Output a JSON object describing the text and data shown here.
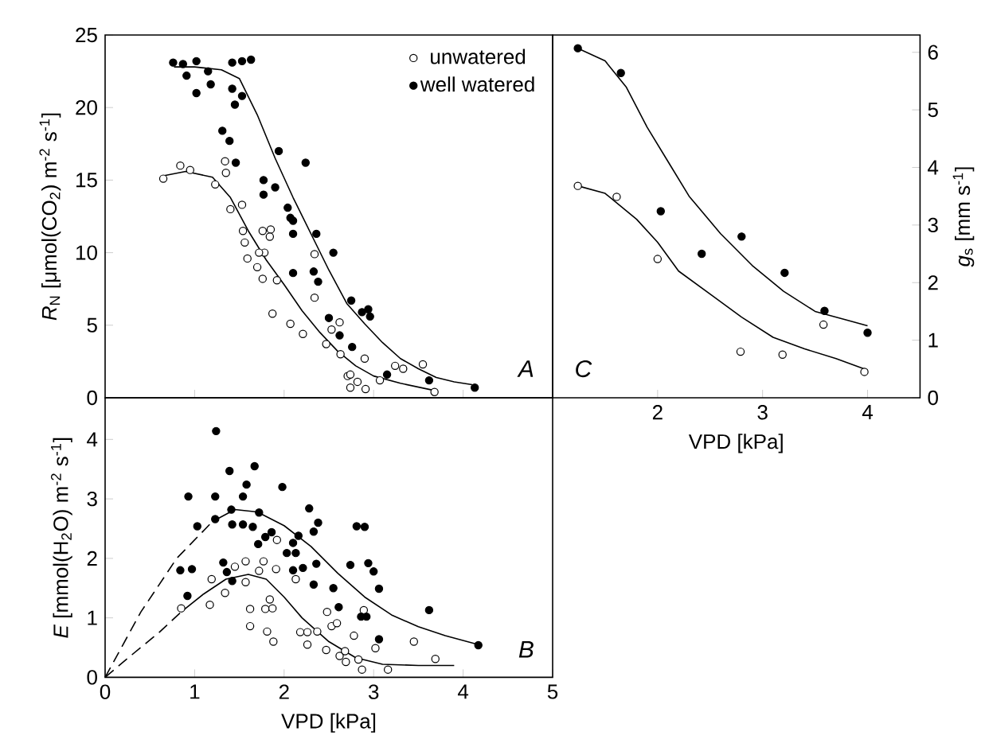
{
  "chart_data": [
    {
      "type": "scatter",
      "xlim": [
        0,
        5
      ],
      "xticks": [
        {
          "value": 1,
          "label": null
        },
        {
          "value": 2,
          "label": null
        },
        {
          "value": 3,
          "label": null
        },
        {
          "value": 4,
          "label": null
        }
      ],
      "ylim": [
        0,
        25
      ],
      "yticks": [
        0,
        5,
        10,
        15,
        20,
        25
      ],
      "tick_labels": "y",
      "ylabel": "*R*$_{N}$ [μmol(CO$_{2}$) m$^{-2}$ s$^{-1}$]",
      "legend": "top right",
      "marker": "circle",
      "annotations": [
        "A"
      ],
      "series": [
        {
          "name": "unwatered",
          "color": "#ffffff",
          "x": [
            0.65,
            0.84,
            0.95,
            1.23,
            1.34,
            1.35,
            1.53,
            1.4,
            1.54,
            1.56,
            1.59,
            1.76,
            1.85,
            1.84,
            1.78,
            1.7,
            1.72,
            1.76,
            1.92,
            1.87,
            2.07,
            2.21,
            2.34,
            2.34,
            2.47,
            2.53,
            2.62,
            2.63,
            2.71,
            2.74,
            2.74,
            2.82,
            2.91,
            2.9,
            3.07,
            3.24,
            3.33,
            3.55,
            3.68
          ],
          "values": [
            15.1,
            16.0,
            15.7,
            14.7,
            16.3,
            15.5,
            13.3,
            13.0,
            11.5,
            10.7,
            9.6,
            11.5,
            11.6,
            11.1,
            10.0,
            9.0,
            10.0,
            8.2,
            8.1,
            5.8,
            5.1,
            4.4,
            9.9,
            6.9,
            3.7,
            4.7,
            5.2,
            3.0,
            1.5,
            1.6,
            0.7,
            1.1,
            0.6,
            2.7,
            1.2,
            2.2,
            2.0,
            2.3,
            0.4
          ]
        },
        {
          "name": "well watered",
          "color": "#000000",
          "x": [
            0.76,
            0.87,
            1.02,
            0.91,
            1.02,
            1.15,
            1.18,
            1.42,
            1.53,
            1.63,
            1.42,
            1.53,
            1.45,
            1.31,
            1.39,
            1.46,
            1.77,
            1.77,
            1.9,
            1.94,
            2.24,
            2.04,
            2.07,
            2.1,
            2.1,
            2.36,
            2.1,
            2.33,
            2.38,
            2.55,
            2.5,
            2.62,
            2.75,
            2.76,
            2.87,
            2.94,
            2.96,
            3.15,
            3.62,
            4.13
          ],
          "values": [
            23.1,
            23.0,
            23.2,
            22.2,
            21.0,
            22.5,
            21.6,
            23.1,
            23.2,
            23.3,
            21.3,
            20.8,
            20.2,
            18.4,
            17.7,
            16.2,
            15.0,
            14.0,
            14.5,
            17.0,
            16.2,
            13.1,
            12.4,
            12.2,
            11.3,
            11.3,
            8.6,
            8.7,
            8.0,
            10.0,
            5.5,
            4.3,
            6.7,
            3.5,
            5.9,
            6.1,
            5.6,
            1.6,
            1.2,
            0.7
          ]
        },
        {
          "type": "line",
          "color": "#000000",
          "marker": "none",
          "line_style": "solid",
          "x": [
            0.65,
            0.9,
            1.2,
            1.4,
            1.6,
            1.8,
            2.0,
            2.2,
            2.4,
            2.6,
            2.8,
            3.0,
            3.3,
            3.68
          ],
          "values": [
            15.3,
            15.6,
            15.2,
            13.8,
            11.5,
            9.5,
            7.8,
            6.0,
            4.5,
            3.2,
            2.2,
            1.5,
            1.0,
            0.5
          ]
        },
        {
          "type": "line",
          "color": "#000000",
          "marker": "none",
          "line_style": "solid",
          "x": [
            0.77,
            1.0,
            1.3,
            1.5,
            1.7,
            1.9,
            2.1,
            2.3,
            2.5,
            2.7,
            2.9,
            3.1,
            3.3,
            3.5,
            3.7,
            3.9,
            4.1
          ],
          "values": [
            22.8,
            22.8,
            22.6,
            22.0,
            19.5,
            16.5,
            13.8,
            11.3,
            8.8,
            6.5,
            5.1,
            3.8,
            2.7,
            2.0,
            1.4,
            1.1,
            0.9
          ]
        }
      ]
    },
    {
      "type": "scatter",
      "xlim": [
        0,
        5
      ],
      "xticks": [
        0,
        1,
        2,
        3,
        4,
        5
      ],
      "ylim": [
        0,
        4.7
      ],
      "yticks": [
        0,
        1,
        2,
        3,
        4
      ],
      "xlabel": "VPD [kPa]",
      "ylabel": "*E* [mmol(H$_{2}$O) m$^{-2}$ s$^{-1}$]",
      "marker": "circle",
      "annotations": [
        "B"
      ],
      "series": [
        {
          "color": "#ffffff",
          "x": [
            0.85,
            1.17,
            1.19,
            1.34,
            1.45,
            1.57,
            1.57,
            1.62,
            1.62,
            1.72,
            1.77,
            1.79,
            1.84,
            1.87,
            1.81,
            1.88,
            1.91,
            1.92,
            2.13,
            2.18,
            2.26,
            2.26,
            2.37,
            2.47,
            2.48,
            2.53,
            2.59,
            2.62,
            2.68,
            2.69,
            2.78,
            2.83,
            2.87,
            2.89,
            3.02,
            3.16,
            3.45,
            3.69
          ],
          "values": [
            1.16,
            1.22,
            1.65,
            1.42,
            1.86,
            1.95,
            1.6,
            1.15,
            0.86,
            1.79,
            1.95,
            1.15,
            1.31,
            1.16,
            0.77,
            0.6,
            1.82,
            2.31,
            1.65,
            0.76,
            0.76,
            0.55,
            0.77,
            0.46,
            1.1,
            0.86,
            0.91,
            0.36,
            0.44,
            0.26,
            0.7,
            0.3,
            0.13,
            1.13,
            0.49,
            0.13,
            0.6,
            0.31
          ]
        },
        {
          "color": "#000000",
          "x": [
            1.24,
            0.93,
            1.23,
            1.39,
            1.67,
            1.58,
            1.54,
            1.98,
            1.03,
            1.23,
            1.41,
            1.42,
            1.54,
            1.65,
            1.72,
            1.71,
            1.79,
            1.86,
            2.03,
            2.13,
            2.1,
            2.16,
            2.1,
            2.21,
            2.28,
            2.38,
            2.33,
            2.36,
            2.33,
            2.55,
            2.61,
            2.74,
            2.86,
            2.92,
            2.81,
            2.9,
            2.94,
            3.0,
            3.06,
            3.06,
            3.62,
            4.17,
            0.84,
            0.97,
            0.92,
            1.32,
            1.36,
            1.42
          ],
          "values": [
            4.14,
            3.04,
            3.04,
            3.47,
            3.55,
            3.24,
            3.04,
            3.2,
            2.54,
            2.66,
            2.82,
            2.57,
            2.57,
            2.53,
            2.77,
            2.24,
            2.36,
            2.44,
            2.09,
            2.09,
            2.26,
            2.38,
            1.8,
            1.84,
            2.84,
            2.6,
            2.45,
            1.91,
            1.56,
            1.5,
            1.18,
            1.89,
            1.02,
            1.02,
            2.54,
            2.53,
            1.92,
            1.78,
            1.49,
            0.64,
            1.13,
            0.54,
            1.8,
            1.82,
            1.37,
            1.93,
            1.77,
            1.62
          ]
        },
        {
          "type": "line",
          "color": "#000000",
          "marker": "none",
          "line_style": "dashed",
          "x": [
            0,
            0.3,
            0.6,
            0.85
          ],
          "values": [
            0,
            0.38,
            0.75,
            1.1
          ]
        },
        {
          "type": "line",
          "color": "#000000",
          "marker": "none",
          "line_style": "solid",
          "x": [
            0.85,
            1.1,
            1.35,
            1.6,
            1.8,
            2.0,
            2.2,
            2.5,
            2.8,
            3.1,
            3.5,
            3.9
          ],
          "values": [
            1.1,
            1.4,
            1.65,
            1.73,
            1.65,
            1.35,
            1.0,
            0.6,
            0.33,
            0.22,
            0.2,
            0.2
          ]
        },
        {
          "type": "line",
          "color": "#000000",
          "marker": "none",
          "line_style": "dashed",
          "x": [
            0,
            0.4,
            0.8,
            1.2
          ],
          "values": [
            0,
            1.1,
            2.0,
            2.62
          ]
        },
        {
          "type": "line",
          "color": "#000000",
          "marker": "none",
          "line_style": "solid",
          "x": [
            1.2,
            1.45,
            1.7,
            2.0,
            2.3,
            2.6,
            2.9,
            3.2,
            3.5,
            3.8,
            4.17
          ],
          "values": [
            2.62,
            2.82,
            2.78,
            2.55,
            2.2,
            1.75,
            1.35,
            1.05,
            0.85,
            0.7,
            0.55
          ]
        }
      ]
    },
    {
      "type": "scatter",
      "xlim": [
        1,
        4.5
      ],
      "xticks": [
        2,
        3,
        4
      ],
      "y2lim": [
        0,
        6.3
      ],
      "y2ticks": [
        0,
        1,
        2,
        3,
        4,
        5,
        6
      ],
      "xlabel": "VPD [kPa]",
      "y2label": "*g*$_{s}$ [mm s$^{-1}$]",
      "marker": "circle",
      "annotations": [
        "C"
      ],
      "series": [
        {
          "color": "#ffffff",
          "axis": "y2",
          "x": [
            1.24,
            1.61,
            2.0,
            2.79,
            3.19,
            3.58,
            3.97
          ],
          "values": [
            3.68,
            3.49,
            2.41,
            0.8,
            0.75,
            1.27,
            0.45
          ]
        },
        {
          "color": "#000000",
          "axis": "y2",
          "x": [
            1.24,
            1.65,
            2.03,
            2.42,
            2.8,
            3.21,
            3.59,
            4.0
          ],
          "values": [
            6.07,
            5.64,
            3.24,
            2.5,
            2.8,
            2.17,
            1.51,
            1.13
          ]
        },
        {
          "type": "line",
          "color": "#000000",
          "marker": "none",
          "line_style": "solid",
          "axis": "y2",
          "x": [
            1.24,
            1.5,
            1.8,
            2.0,
            2.2,
            2.5,
            2.8,
            3.1,
            3.4,
            3.7,
            4.0
          ],
          "values": [
            3.68,
            3.55,
            3.1,
            2.7,
            2.2,
            1.8,
            1.4,
            1.05,
            0.85,
            0.68,
            0.48
          ]
        },
        {
          "type": "line",
          "color": "#000000",
          "marker": "none",
          "line_style": "solid",
          "axis": "y2",
          "x": [
            1.24,
            1.5,
            1.7,
            1.9,
            2.1,
            2.3,
            2.6,
            2.9,
            3.2,
            3.5,
            3.8,
            4.0
          ],
          "values": [
            6.07,
            5.85,
            5.4,
            4.7,
            4.1,
            3.5,
            2.85,
            2.3,
            1.85,
            1.5,
            1.35,
            1.25
          ]
        }
      ]
    }
  ]
}
